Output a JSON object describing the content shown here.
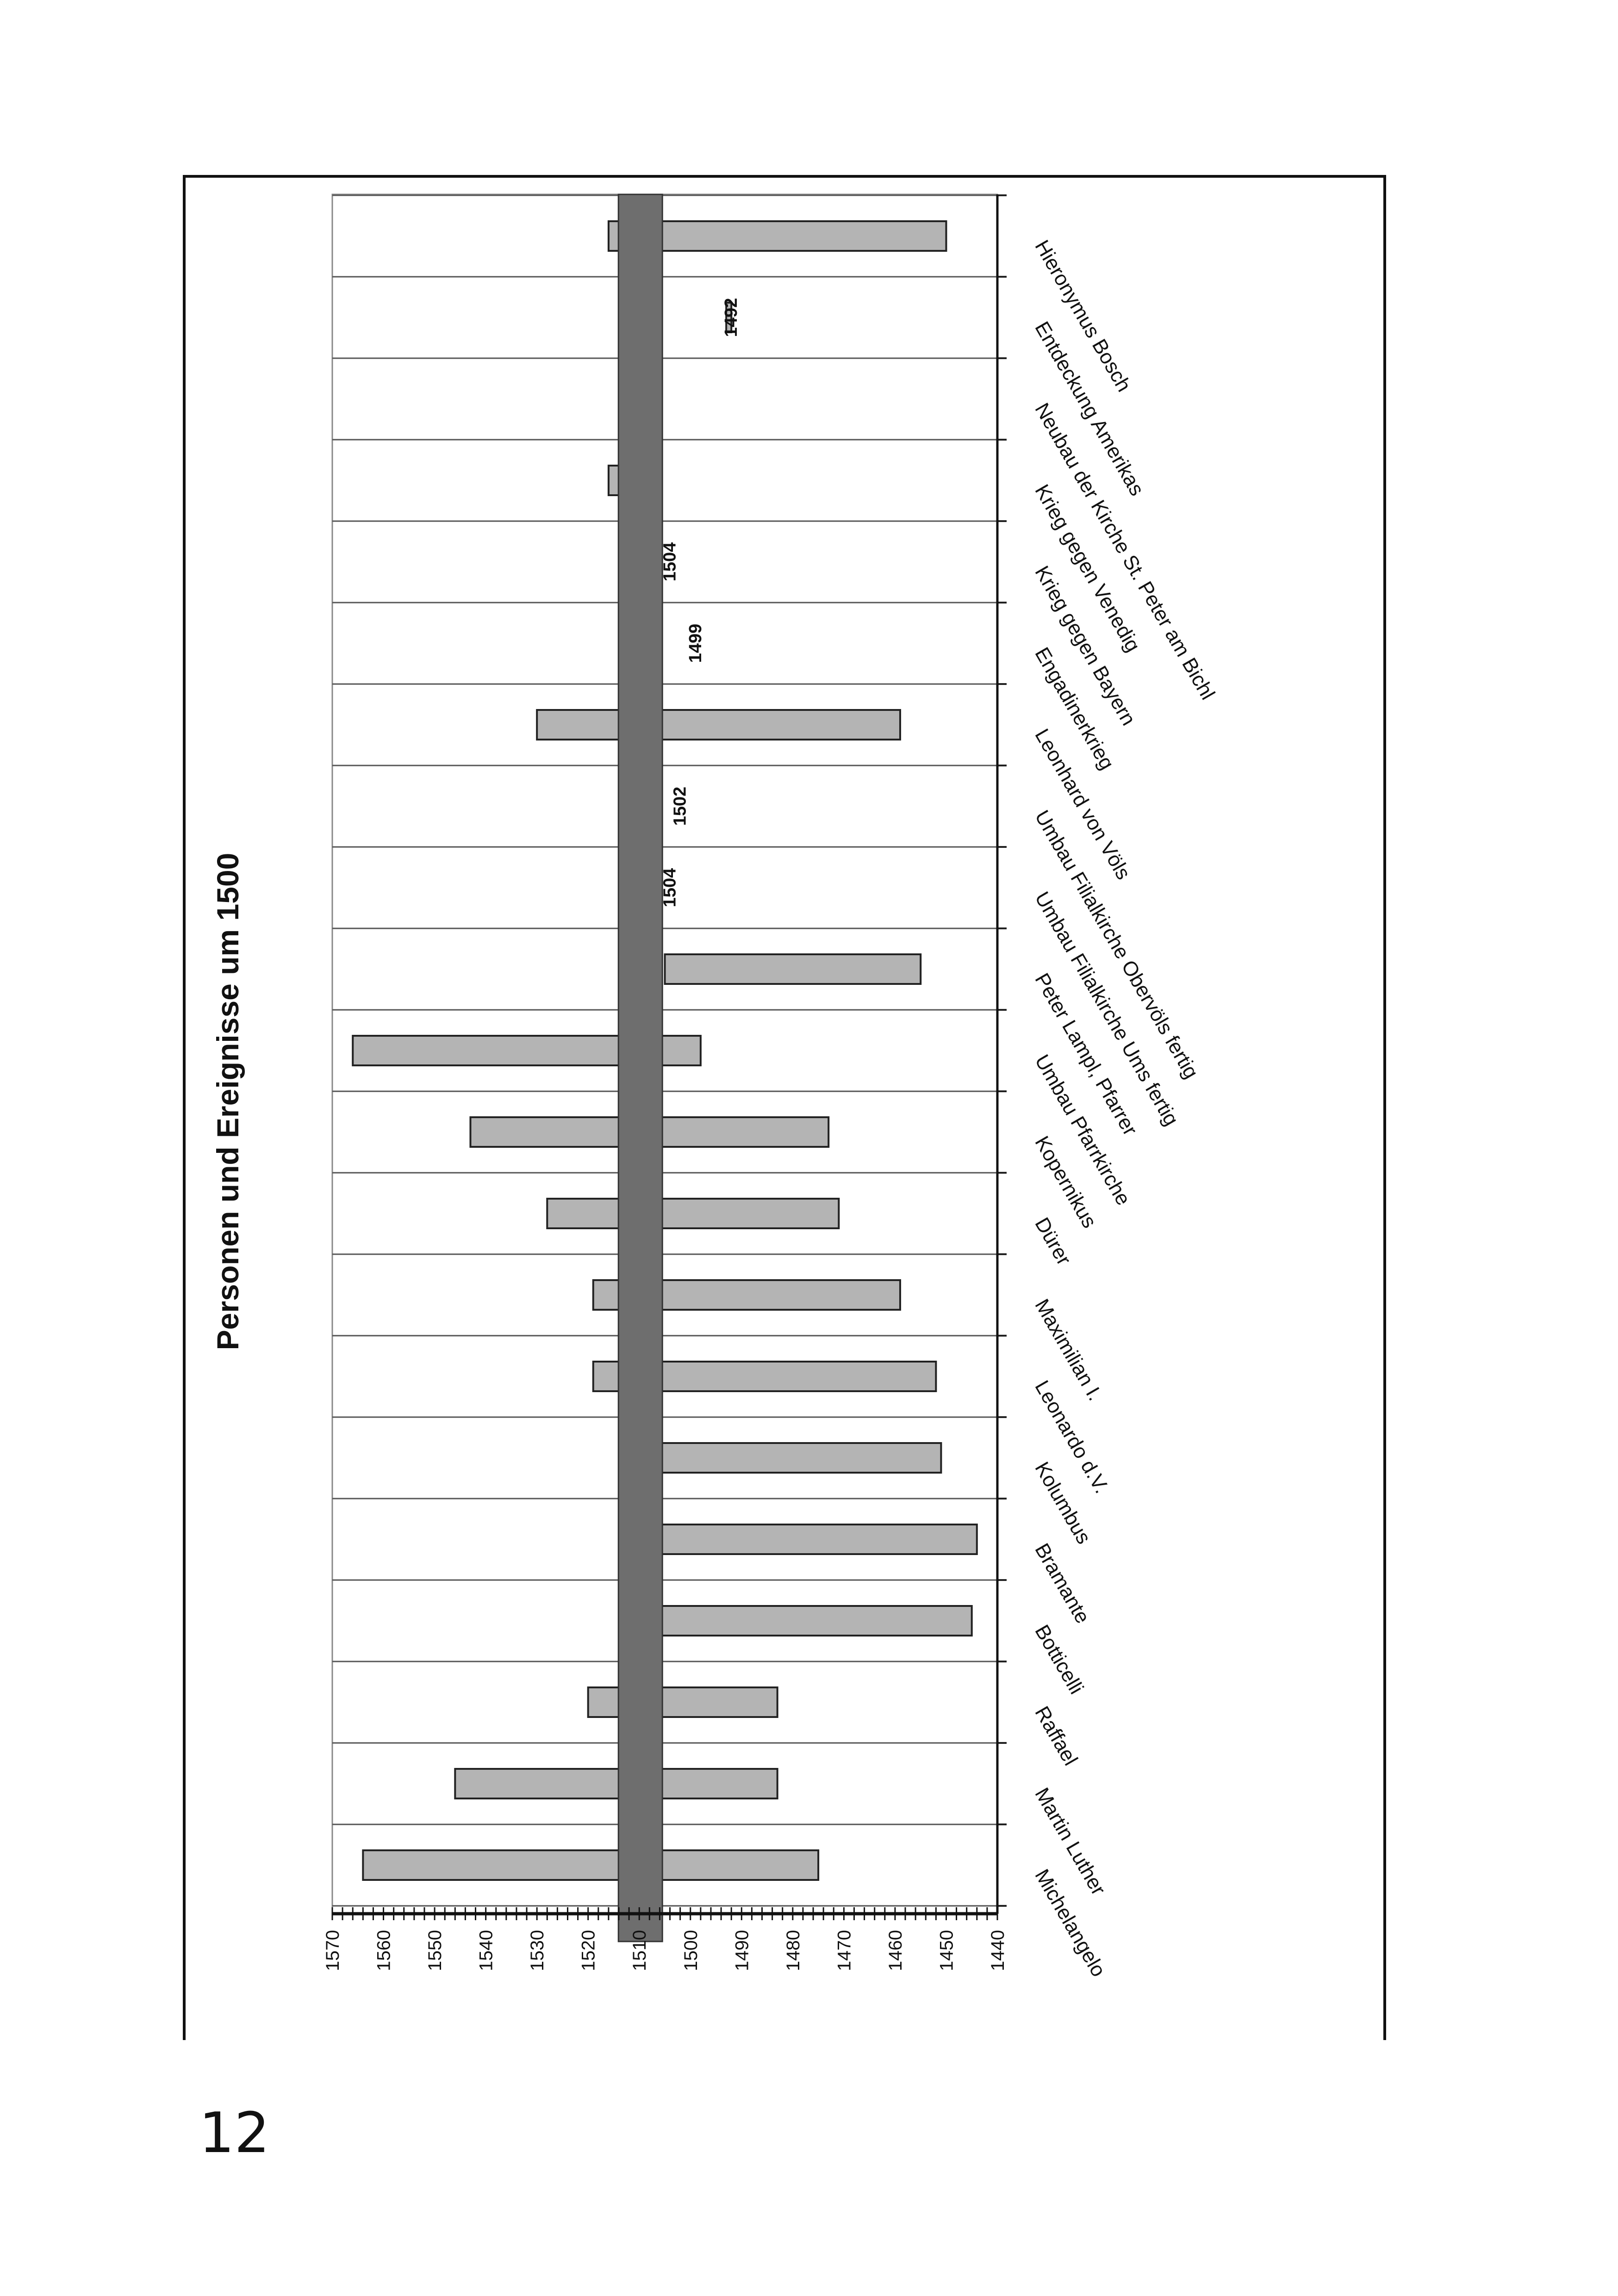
{
  "page": {
    "number": "12"
  },
  "chart_data": {
    "type": "bar",
    "orientation": "rotated-horizontal-bar (page rotated 90°)",
    "title": "Personen und Ereignisse um 1500",
    "xlim": [
      1440,
      1570
    ],
    "ticks": [
      "1570",
      "1560",
      "1550",
      "1540",
      "1530",
      "1520",
      "1510",
      "1500",
      "1490",
      "1480",
      "1470",
      "1460",
      "1450",
      "1440"
    ],
    "reference_line": {
      "value": 1510,
      "color": "#6e6e6e"
    },
    "bar_color": "#b4b4b4",
    "categories": [
      "Michelangelo",
      "Martin Luther",
      "Raffael",
      "Botticelli",
      "Bramante",
      "Kolumbus",
      "Leonardo d.V.",
      "Maximilian I.",
      "Dürer",
      "Kopernikus",
      "Umbau Pfarrkirche",
      "Peter Lampl, Pfarrer",
      "Umbau Filialkirche Ums fertig",
      "Umbau Filialkirche Obervöls fertig",
      "Leonhard von Völs",
      "Engadinerkrieg",
      "Krieg gegen Bayern",
      "Krieg gegen Venedig",
      "Neubau der Kirche St. Peter am Bichl",
      "Entdeckung Amerikas",
      "Hieronymus Bosch"
    ],
    "series": [
      {
        "values": [
          [
            1475,
            1564
          ],
          [
            1483,
            1546
          ],
          [
            1483,
            1520
          ],
          [
            1445,
            1510
          ],
          [
            1444,
            1514
          ],
          [
            1451,
            1506
          ],
          [
            1452,
            1519
          ],
          [
            1459,
            1519
          ],
          [
            1471,
            1528
          ],
          [
            1473,
            1543
          ],
          [
            1498,
            1566
          ],
          [
            1455,
            1505
          ],
          [
            1504,
            1504
          ],
          [
            1502,
            1502
          ],
          [
            1459,
            1530
          ],
          [
            1499,
            1499
          ],
          [
            1504,
            1504
          ],
          [
            1508,
            1516
          ],
          [
            1492,
            1492
          ],
          [
            1492,
            1493
          ],
          [
            1450,
            1516
          ]
        ]
      }
    ],
    "point_labels": [
      {
        "category": "Entdeckung Amerikas",
        "text": "1492"
      },
      {
        "category": "Krieg gegen Bayern",
        "text": "1504"
      },
      {
        "category": "Engadinerkrieg",
        "text": "1499"
      },
      {
        "category": "Umbau Filialkirche Obervöls fertig",
        "text": "1502"
      },
      {
        "category": "Umbau Filialkirche Ums fertig",
        "text": "1504"
      }
    ],
    "grid": true
  }
}
